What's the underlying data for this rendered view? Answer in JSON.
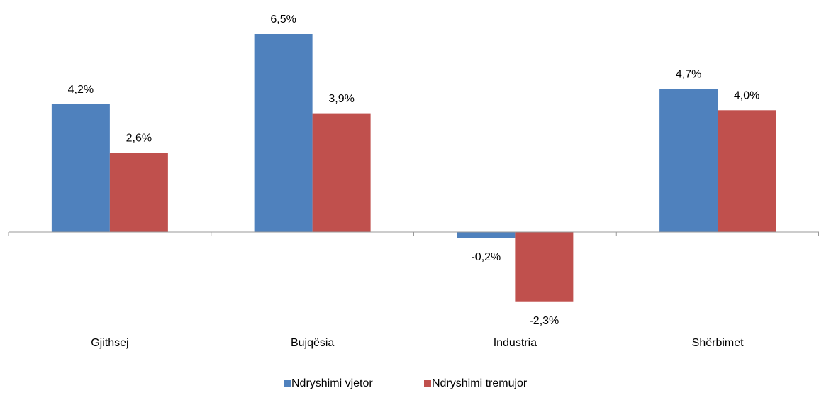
{
  "chart_data": {
    "type": "bar",
    "categories": [
      "Gjithsej",
      "Bujqësia",
      "Industria",
      "Shërbimet"
    ],
    "series": [
      {
        "name": "Ndryshimi vjetor",
        "color": "#4f81bd",
        "values": [
          4.2,
          6.5,
          -0.2,
          4.7
        ],
        "value_labels": [
          "4,2%",
          "6,5%",
          "-0,2%",
          "4,7%"
        ]
      },
      {
        "name": "Ndryshimi tremujor",
        "color": "#c0504d",
        "values": [
          2.6,
          3.9,
          -2.3,
          4.0
        ],
        "value_labels": [
          "2,6%",
          "3,9%",
          "-2,3%",
          "4,0%"
        ]
      }
    ],
    "legend": "bottom"
  }
}
